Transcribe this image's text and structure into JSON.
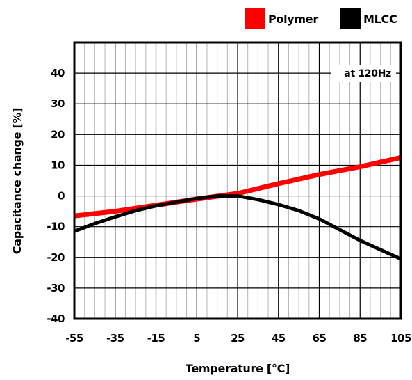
{
  "chart_data": {
    "type": "line",
    "title": "",
    "xlabel": "Temperature [°C]",
    "ylabel": "Capacitance change [%]",
    "annotation": "at 120Hz",
    "xlim": [
      -55,
      105
    ],
    "ylim": [
      -40,
      50
    ],
    "x_ticks": [
      "-55",
      "-35",
      "-15",
      "5",
      "25",
      "45",
      "65",
      "85",
      "105"
    ],
    "y_ticks": [
      "40",
      "30",
      "20",
      "10",
      "0",
      "-10",
      "-20",
      "-30",
      "-40"
    ],
    "grid": true,
    "legend_position": "top-right",
    "series": [
      {
        "name": "Polymer",
        "color": "#ff0000",
        "x": [
          -55,
          -35,
          -15,
          5,
          25,
          45,
          65,
          85,
          105
        ],
        "y": [
          -6.5,
          -5,
          -3,
          -1,
          0.8,
          4,
          7,
          9.5,
          12.5
        ]
      },
      {
        "name": "MLCC",
        "color": "#000000",
        "x": [
          -55,
          -45,
          -35,
          -25,
          -15,
          -5,
          5,
          15,
          25,
          35,
          45,
          55,
          65,
          75,
          85,
          95,
          105
        ],
        "y": [
          -11.5,
          -9,
          -6.8,
          -4.8,
          -3.2,
          -2,
          -0.8,
          0,
          0,
          -1.2,
          -2.8,
          -4.8,
          -7.5,
          -11,
          -14.5,
          -17.5,
          -20.5
        ]
      }
    ]
  }
}
